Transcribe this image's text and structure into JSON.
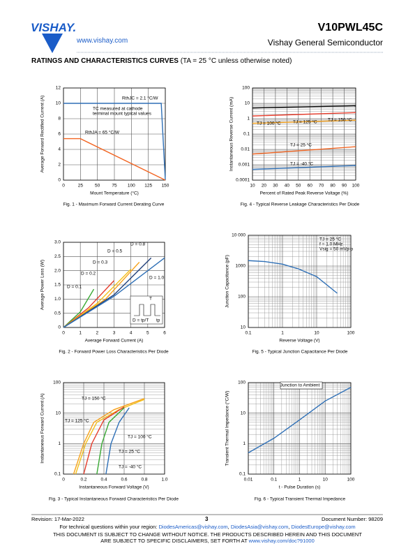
{
  "header": {
    "logo": "VISHAY.",
    "url": "www.vishay.com",
    "part": "V10PWL45C",
    "division": "Vishay General Semiconductor"
  },
  "section": {
    "title": "RATINGS AND CHARACTERISTICS CURVES",
    "condition": "(TA = 25 °C unless otherwise noted)"
  },
  "chart_data": [
    {
      "type": "line",
      "title": "Fig. 1 - Maximum Forward Current Derating Curve",
      "xlabel": "Mount Temperature (°C)",
      "ylabel": "Average Forward Rectified Current (A)",
      "xlim": [
        0,
        150
      ],
      "xticks": [
        0,
        25,
        50,
        75,
        100,
        125,
        150
      ],
      "ylim": [
        0,
        12
      ],
      "yticks": [
        0,
        2,
        4,
        6,
        8,
        10,
        12
      ],
      "grid": true,
      "series": [
        {
          "name": "RthJC = 2.1 °C/W",
          "color": "#2e6fb6",
          "x": [
            0,
            144,
            150
          ],
          "values": [
            10,
            10,
            0
          ]
        },
        {
          "name": "RthJA = 65 °C/W",
          "color": "#f26522",
          "x": [
            0,
            25,
            150
          ],
          "values": [
            5.4,
            5.4,
            0
          ]
        }
      ],
      "annotations": [
        "TC measured at cathode",
        "terminal mount typical values"
      ]
    },
    {
      "type": "line",
      "title": "Fig. 2 - Forward Power Loss Characteristics Per Diode",
      "xlabel": "Average Forward Current (A)",
      "ylabel": "Average Power Loss (W)",
      "xlim": [
        0,
        6
      ],
      "xticks": [
        0,
        1,
        2,
        3,
        4,
        5,
        6
      ],
      "ylim": [
        0,
        3
      ],
      "yticks": [
        0,
        0.5,
        {
          "value": 1,
          "label": "1.0"
        },
        1.5,
        {
          "value": 2,
          "label": "2.0"
        },
        2.5,
        {
          "value": 3,
          "label": "3.0"
        }
      ],
      "grid": true,
      "series": [
        {
          "name": "D = 0.1",
          "color": "#3aa935",
          "x": [
            0,
            1,
            1.8
          ],
          "values": [
            0,
            0.55,
            1.35
          ]
        },
        {
          "name": "D = 0.2",
          "color": "#e53b2b",
          "x": [
            0,
            1.5,
            3
          ],
          "values": [
            0,
            0.7,
            1.65
          ]
        },
        {
          "name": "D = 0.3",
          "color": "#f3c01b",
          "x": [
            0,
            2,
            4
          ],
          "values": [
            0,
            0.85,
            2.05
          ]
        },
        {
          "name": "D = 0.5",
          "color": "#f7a21b",
          "x": [
            0,
            2.5,
            4.5
          ],
          "values": [
            0,
            1,
            2.3
          ]
        },
        {
          "name": "D = 0.8",
          "color": "#1f3f7a",
          "x": [
            0,
            3,
            5.2
          ],
          "values": [
            0,
            1.15,
            2.45
          ]
        },
        {
          "name": "D = 1.0",
          "color": "#2e6fb6",
          "x": [
            0,
            3,
            6
          ],
          "values": [
            0,
            1.1,
            2.45
          ]
        }
      ],
      "annotations": [
        "T",
        "D = tp/T",
        "tp"
      ]
    },
    {
      "type": "line",
      "title": "Fig. 3 - Typical Instantaneous Forward Characteristics Per Diode",
      "xlabel": "Instantaneous Forward Voltage (V)",
      "ylabel": "Instantaneous Forward Current (A)",
      "xlim": [
        0,
        1
      ],
      "xticks": [
        0,
        0.2,
        0.4,
        0.6,
        0.8,
        {
          "value": 1,
          "label": "1.0"
        }
      ],
      "ylim": [
        0.1,
        100
      ],
      "yticks": [
        0.1,
        1,
        10,
        100
      ],
      "ylog": true,
      "grid": true,
      "series": [
        {
          "name": "TJ = 150 °C",
          "color": "#f7a21b",
          "x": [
            0.1,
            0.2,
            0.3,
            0.5,
            0.8
          ],
          "values": [
            0.1,
            1,
            5,
            13,
            30
          ]
        },
        {
          "name": "TJ = 125 °C",
          "color": "#f3c01b",
          "x": [
            0.12,
            0.22,
            0.33,
            0.55,
            0.8
          ],
          "values": [
            0.1,
            1,
            5,
            13,
            28
          ]
        },
        {
          "name": "TJ = 100 °C",
          "color": "#e53b2b",
          "x": [
            0.2,
            0.28,
            0.4,
            0.6
          ],
          "values": [
            0.1,
            1,
            6,
            16
          ]
        },
        {
          "name": "TJ = 25 °C",
          "color": "#3aa935",
          "x": [
            0.33,
            0.38,
            0.45,
            0.6
          ],
          "values": [
            0.1,
            1,
            5,
            15
          ]
        },
        {
          "name": "TJ = -40 °C",
          "color": "#2e6fb6",
          "x": [
            0.42,
            0.47,
            0.55,
            0.65
          ],
          "values": [
            0.1,
            1,
            5,
            15
          ]
        }
      ]
    },
    {
      "type": "line",
      "title": "Fig. 4 - Typical Reverse Leakage Characteristics Per Diode",
      "xlabel": "Percent of Rated Peak Reverse Voltage (%)",
      "ylabel": "Instantaneous Reverse Current (mA)",
      "xlim": [
        10,
        100
      ],
      "xticks": [
        10,
        20,
        30,
        40,
        50,
        60,
        70,
        80,
        90,
        100
      ],
      "ylim": [
        0.0001,
        100
      ],
      "yticks": [
        0.0001,
        0.001,
        0.01,
        0.1,
        1,
        10,
        100
      ],
      "ylog": true,
      "grid": true,
      "series": [
        {
          "name": "TJ = 150 °C",
          "color": "#000000",
          "x": [
            10,
            100
          ],
          "values": [
            5,
            7
          ]
        },
        {
          "name": "TJ = 125 °C",
          "color": "#e53b2b",
          "x": [
            10,
            100
          ],
          "values": [
            1.5,
            2.5
          ]
        },
        {
          "name": "TJ = 100 °C",
          "color": "#f7a21b",
          "x": [
            10,
            100
          ],
          "values": [
            0.5,
            0.8
          ]
        },
        {
          "name": "TJ = 25 °C",
          "color": "#f26522",
          "x": [
            10,
            100
          ],
          "values": [
            0.005,
            0.015
          ]
        },
        {
          "name": "TJ = -40 °C",
          "color": "#2e6fb6",
          "x": [
            10,
            100
          ],
          "values": [
            0.0005,
            0.0009
          ]
        }
      ]
    },
    {
      "type": "line",
      "title": "Fig. 5 - Typical Junction Capacitance Per Diode",
      "xlabel": "Reverse Voltage (V)",
      "ylabel": "Junction Capacitance (pF)",
      "xlim": [
        0.1,
        100
      ],
      "xticks": [
        0.1,
        1,
        10,
        100
      ],
      "xlog": true,
      "ylim": [
        10,
        10000
      ],
      "yticks": [
        10,
        100,
        1000,
        {
          "value": 10000,
          "label": "10 000"
        }
      ],
      "ylog": true,
      "grid": true,
      "series": [
        {
          "color": "#2e6fb6",
          "x": [
            0.1,
            0.3,
            1,
            3,
            10,
            40
          ],
          "values": [
            1500,
            1400,
            1150,
            800,
            450,
            130
          ]
        }
      ],
      "annotations": [
        "TJ = 25 °C",
        "f = 1.0 MHz",
        "Vsig = 50 mVp-p"
      ]
    },
    {
      "type": "line",
      "title": "Fig. 6 - Typical Transient Thermal Impedance",
      "xlabel": "t - Pulse Duration (s)",
      "ylabel": "Transient Thermal Impedance (°C/W)",
      "xlim": [
        0.01,
        100
      ],
      "xticks": [
        0.01,
        0.1,
        1,
        10,
        100
      ],
      "xlog": true,
      "ylim": [
        0.1,
        100
      ],
      "yticks": [
        0.1,
        1,
        10,
        100
      ],
      "ylog": true,
      "grid": true,
      "series": [
        {
          "name": "Junction to Ambient",
          "color": "#2e6fb6",
          "x": [
            0.01,
            0.1,
            1,
            10,
            100
          ],
          "values": [
            0.5,
            1.5,
            6,
            25,
            70
          ]
        }
      ]
    }
  ],
  "footer": {
    "revision": "Revision: 17-Mar-2022",
    "page": "3",
    "document": "Document Number: 98209",
    "contact": "For technical questions within your region: ",
    "emails": [
      "DiodesAmericas@vishay.com",
      "DiodesAsia@vishay.com",
      "DiodesEurope@vishay.com"
    ],
    "separator": ", ",
    "disclaimer1": "THIS DOCUMENT IS SUBJECT TO CHANGE WITHOUT NOTICE. THE PRODUCTS DESCRIBED HEREIN AND THIS DOCUMENT",
    "disclaimer2": "ARE SUBJECT TO SPECIFIC DISCLAIMERS, SET FORTH AT ",
    "disclaimer_url": "www.vishay.com/doc?91000"
  }
}
